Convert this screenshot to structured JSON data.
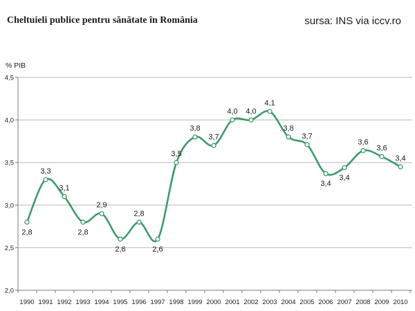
{
  "chart_data": {
    "type": "line",
    "title": "Cheltuieli publice pentru sănătate în România",
    "source": "sursa: INS via iccv.ro",
    "ylabel": "% PIB",
    "xlabel": "",
    "ylim": [
      2.0,
      4.5
    ],
    "yticks": [
      "2,0",
      "2,5",
      "3,0",
      "3,5",
      "4,0",
      "4,5"
    ],
    "grid": true,
    "legend": "none",
    "line_color": "#3d9a6a",
    "categories": [
      "1990",
      "1991",
      "1992",
      "1993",
      "1994",
      "1995",
      "1996",
      "1997",
      "1998",
      "1999",
      "2000",
      "2001",
      "2002",
      "2003",
      "2004",
      "2005",
      "2006",
      "2007",
      "2008",
      "2009",
      "2010"
    ],
    "values": [
      2.8,
      3.3,
      3.1,
      2.8,
      2.9,
      2.6,
      2.8,
      2.6,
      3.5,
      3.8,
      3.7,
      4.0,
      4.0,
      4.1,
      3.8,
      3.71,
      3.37,
      3.44,
      3.64,
      3.57,
      3.45
    ],
    "data_labels": [
      "2,8",
      "3,3",
      "3,1",
      "2,8",
      "2,9",
      "2,6",
      "2,8",
      "2,6",
      "3,5",
      "3,8",
      "3,7",
      "4,0",
      "4,0",
      "4,1",
      "3,8",
      "3,7",
      "3,4",
      "3,4",
      "3,6",
      "3,6",
      "3,4"
    ],
    "label_position": [
      "below",
      "above",
      "above",
      "below",
      "above",
      "below",
      "above",
      "below",
      "above",
      "above",
      "above",
      "above",
      "above",
      "above",
      "above",
      "above",
      "below",
      "below",
      "above",
      "above",
      "above"
    ]
  }
}
